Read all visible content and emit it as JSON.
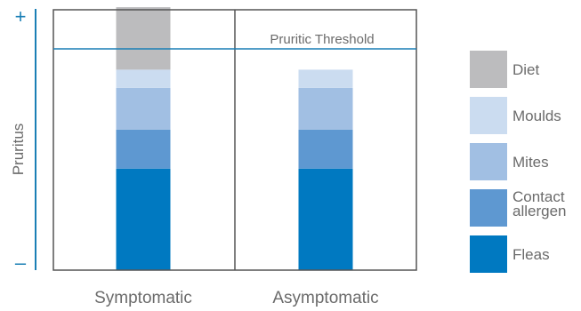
{
  "chart_data": {
    "type": "bar",
    "stacked": true,
    "categories": [
      "Symptomatic",
      "Asymptomatic"
    ],
    "ylabel": "Pruritus",
    "y_axis_top_label": "+",
    "y_axis_bottom_label": "–",
    "ylim": [
      0,
      100
    ],
    "y_tick_labels_shown": false,
    "grid": false,
    "threshold": {
      "label": "Pruritic Threshold",
      "value": 85
    },
    "series": [
      {
        "name": "Fleas",
        "color": "#0079c1",
        "values": [
          39,
          39
        ]
      },
      {
        "name": "Contact allergen",
        "color": "#5e98d1",
        "values": [
          15,
          15
        ]
      },
      {
        "name": "Mites",
        "color": "#a1bfe3",
        "values": [
          16,
          16
        ]
      },
      {
        "name": "Moulds",
        "color": "#cbdcf0",
        "values": [
          7,
          7
        ]
      },
      {
        "name": "Diet",
        "color": "#bcbcbe",
        "values": [
          24,
          0
        ]
      }
    ],
    "legend": {
      "placement": "right",
      "order": [
        "Diet",
        "Moulds",
        "Mites",
        "Contact allergen",
        "Fleas"
      ],
      "labels": {
        "Diet": [
          "Diet"
        ],
        "Moulds": [
          "Moulds"
        ],
        "Mites": [
          "Mites"
        ],
        "Contact allergen": [
          "Contact",
          "allergen"
        ],
        "Fleas": [
          "Fleas"
        ]
      }
    },
    "colors": {
      "axis": "#1a7fb5",
      "frame": "#555555",
      "threshold_line": "#1a7fb5",
      "text": "#6b6b6b"
    }
  }
}
